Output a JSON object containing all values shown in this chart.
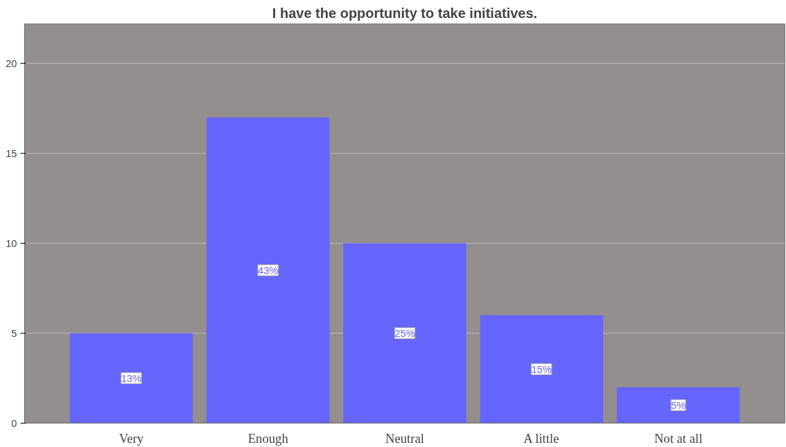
{
  "chart_data": {
    "type": "bar",
    "title": "I have the opportunity to take initiatives.",
    "categories": [
      "Very",
      "Enough",
      "Neutral",
      "A little",
      "Not at all"
    ],
    "values": [
      5,
      17,
      10,
      6,
      2
    ],
    "color": "#6666ff",
    "annotations": [
      {
        "text": "13%",
        "x": "Very",
        "y": 2.5
      },
      {
        "text": "43%",
        "x": "Enough",
        "y": 8.5
      },
      {
        "text": "25%",
        "x": "Neutral",
        "y": 5
      },
      {
        "text": "15%",
        "x": "A little",
        "y": 3
      },
      {
        "text": "5%",
        "x": "Not at all",
        "y": 1
      }
    ],
    "ylim": [
      0,
      22.2
    ],
    "yticks": [
      0,
      5,
      10,
      15,
      20
    ],
    "grid": "y"
  }
}
